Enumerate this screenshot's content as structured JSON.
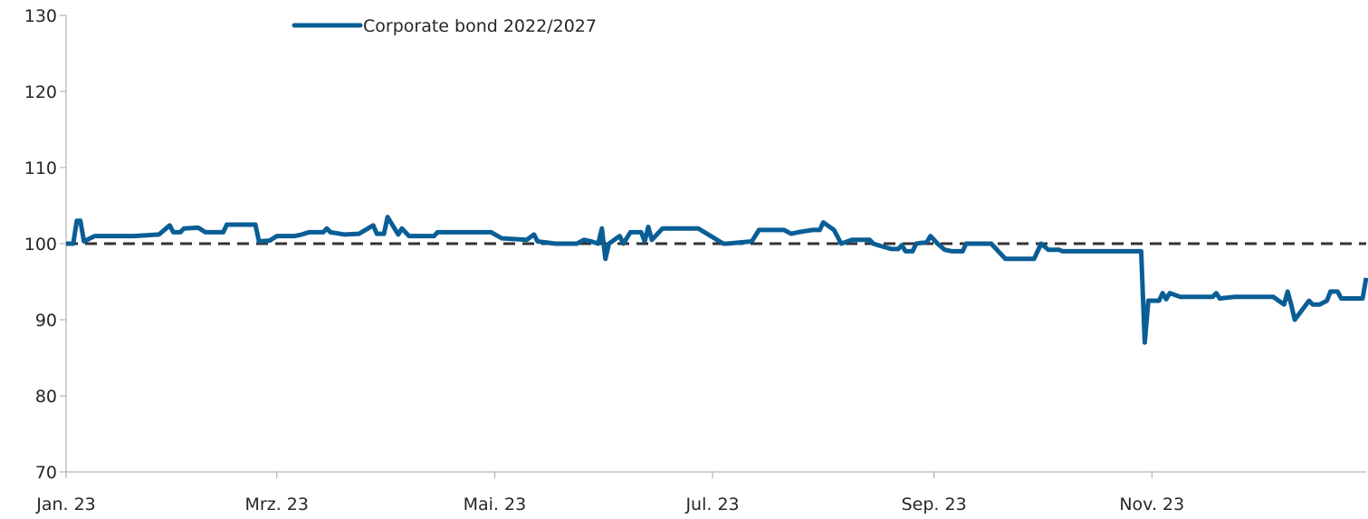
{
  "chart_data": {
    "type": "line",
    "title": "",
    "xlabel": "",
    "ylabel": "",
    "ylim": [
      70,
      130
    ],
    "y_ticks": [
      "70",
      "80",
      "90",
      "100",
      "110",
      "120",
      "130"
    ],
    "xlim": [
      "2023-01-01",
      "2023-12-31"
    ],
    "x_ticks": [
      {
        "date": "2023-01-01",
        "label": "Jan. 23"
      },
      {
        "date": "2023-03-01",
        "label": "Mrz. 23"
      },
      {
        "date": "2023-05-01",
        "label": "Mai. 23"
      },
      {
        "date": "2023-07-01",
        "label": "Jul. 23"
      },
      {
        "date": "2023-09-01",
        "label": "Sep. 23"
      },
      {
        "date": "2023-11-01",
        "label": "Nov. 23"
      }
    ],
    "grid": false,
    "legend_position": "top-left",
    "reference_line": {
      "y": 100,
      "style": "dashed",
      "color": "#333333"
    },
    "colors": {
      "series": "#0a5e96",
      "axis": "#a6a6a6"
    },
    "series": [
      {
        "name": "Corporate bond 2022/2027",
        "points": [
          [
            "2023-01-01",
            100.0
          ],
          [
            "2023-01-03",
            100.0
          ],
          [
            "2023-01-04",
            103.0
          ],
          [
            "2023-01-05",
            103.0
          ],
          [
            "2023-01-06",
            100.3
          ],
          [
            "2023-01-09",
            101.0
          ],
          [
            "2023-01-12",
            101.0
          ],
          [
            "2023-01-20",
            101.0
          ],
          [
            "2023-01-27",
            101.2
          ],
          [
            "2023-01-30",
            102.4
          ],
          [
            "2023-01-31",
            101.5
          ],
          [
            "2023-02-02",
            101.5
          ],
          [
            "2023-02-03",
            102.0
          ],
          [
            "2023-02-07",
            102.1
          ],
          [
            "2023-02-09",
            101.5
          ],
          [
            "2023-02-14",
            101.5
          ],
          [
            "2023-02-15",
            102.5
          ],
          [
            "2023-02-23",
            102.5
          ],
          [
            "2023-02-24",
            100.3
          ],
          [
            "2023-02-27",
            100.4
          ],
          [
            "2023-03-01",
            101.0
          ],
          [
            "2023-03-06",
            101.0
          ],
          [
            "2023-03-08",
            101.2
          ],
          [
            "2023-03-10",
            101.5
          ],
          [
            "2023-03-14",
            101.5
          ],
          [
            "2023-03-15",
            102.0
          ],
          [
            "2023-03-16",
            101.5
          ],
          [
            "2023-03-20",
            101.2
          ],
          [
            "2023-03-24",
            101.3
          ],
          [
            "2023-03-28",
            102.4
          ],
          [
            "2023-03-29",
            101.3
          ],
          [
            "2023-03-31",
            101.3
          ],
          [
            "2023-04-01",
            103.5
          ],
          [
            "2023-04-04",
            101.2
          ],
          [
            "2023-04-05",
            102.0
          ],
          [
            "2023-04-07",
            101.0
          ],
          [
            "2023-04-14",
            101.0
          ],
          [
            "2023-04-15",
            101.5
          ],
          [
            "2023-04-21",
            101.5
          ],
          [
            "2023-04-28",
            101.5
          ],
          [
            "2023-04-30",
            101.5
          ],
          [
            "2023-05-03",
            100.7
          ],
          [
            "2023-05-10",
            100.5
          ],
          [
            "2023-05-12",
            101.2
          ],
          [
            "2023-05-13",
            100.3
          ],
          [
            "2023-05-18",
            100.0
          ],
          [
            "2023-05-24",
            100.0
          ],
          [
            "2023-05-26",
            100.5
          ],
          [
            "2023-05-28",
            100.3
          ],
          [
            "2023-05-30",
            100.0
          ],
          [
            "2023-05-31",
            102.0
          ],
          [
            "2023-06-01",
            98.0
          ],
          [
            "2023-06-02",
            100.0
          ],
          [
            "2023-06-05",
            101.0
          ],
          [
            "2023-06-06",
            100.0
          ],
          [
            "2023-06-08",
            101.5
          ],
          [
            "2023-06-11",
            101.5
          ],
          [
            "2023-06-12",
            100.3
          ],
          [
            "2023-06-13",
            102.2
          ],
          [
            "2023-06-14",
            100.5
          ],
          [
            "2023-06-17",
            102.0
          ],
          [
            "2023-06-27",
            102.0
          ],
          [
            "2023-07-04",
            100.0
          ],
          [
            "2023-07-05",
            100.0
          ],
          [
            "2023-07-12",
            100.3
          ],
          [
            "2023-07-14",
            101.8
          ],
          [
            "2023-07-21",
            101.8
          ],
          [
            "2023-07-23",
            101.3
          ],
          [
            "2023-07-25",
            101.5
          ],
          [
            "2023-07-29",
            101.8
          ],
          [
            "2023-07-31",
            101.8
          ],
          [
            "2023-08-01",
            102.8
          ],
          [
            "2023-08-04",
            101.8
          ],
          [
            "2023-08-06",
            100.0
          ],
          [
            "2023-08-09",
            100.5
          ],
          [
            "2023-08-14",
            100.5
          ],
          [
            "2023-08-15",
            100.0
          ],
          [
            "2023-08-17",
            99.7
          ],
          [
            "2023-08-20",
            99.3
          ],
          [
            "2023-08-22",
            99.3
          ],
          [
            "2023-08-23",
            99.8
          ],
          [
            "2023-08-24",
            99.0
          ],
          [
            "2023-08-26",
            99.0
          ],
          [
            "2023-08-27",
            100.0
          ],
          [
            "2023-08-30",
            100.2
          ],
          [
            "2023-08-31",
            101.0
          ],
          [
            "2023-09-02",
            100.0
          ],
          [
            "2023-09-04",
            99.2
          ],
          [
            "2023-09-06",
            99.0
          ],
          [
            "2023-09-09",
            99.0
          ],
          [
            "2023-09-10",
            100.0
          ],
          [
            "2023-09-17",
            100.0
          ],
          [
            "2023-09-21",
            98.0
          ],
          [
            "2023-09-29",
            98.0
          ],
          [
            "2023-10-01",
            100.0
          ],
          [
            "2023-10-03",
            99.2
          ],
          [
            "2023-10-06",
            99.2
          ],
          [
            "2023-10-07",
            99.0
          ],
          [
            "2023-10-14",
            99.0
          ],
          [
            "2023-10-29",
            99.0
          ],
          [
            "2023-10-30",
            87.0
          ],
          [
            "2023-10-31",
            92.5
          ],
          [
            "2023-11-03",
            92.5
          ],
          [
            "2023-11-04",
            93.5
          ],
          [
            "2023-11-05",
            92.7
          ],
          [
            "2023-11-06",
            93.5
          ],
          [
            "2023-11-09",
            93.0
          ],
          [
            "2023-11-18",
            93.0
          ],
          [
            "2023-11-19",
            93.5
          ],
          [
            "2023-11-20",
            92.8
          ],
          [
            "2023-11-24",
            93.0
          ],
          [
            "2023-12-05",
            93.0
          ],
          [
            "2023-12-08",
            92.0
          ],
          [
            "2023-12-09",
            93.7
          ],
          [
            "2023-12-10",
            92.0
          ],
          [
            "2023-12-11",
            90.0
          ],
          [
            "2023-12-15",
            92.5
          ],
          [
            "2023-12-16",
            92.0
          ],
          [
            "2023-12-18",
            92.0
          ],
          [
            "2023-12-20",
            92.5
          ],
          [
            "2023-12-21",
            93.7
          ],
          [
            "2023-12-23",
            93.7
          ],
          [
            "2023-12-24",
            92.8
          ],
          [
            "2023-12-30",
            92.8
          ],
          [
            "2023-12-31",
            95.5
          ]
        ]
      }
    ]
  }
}
